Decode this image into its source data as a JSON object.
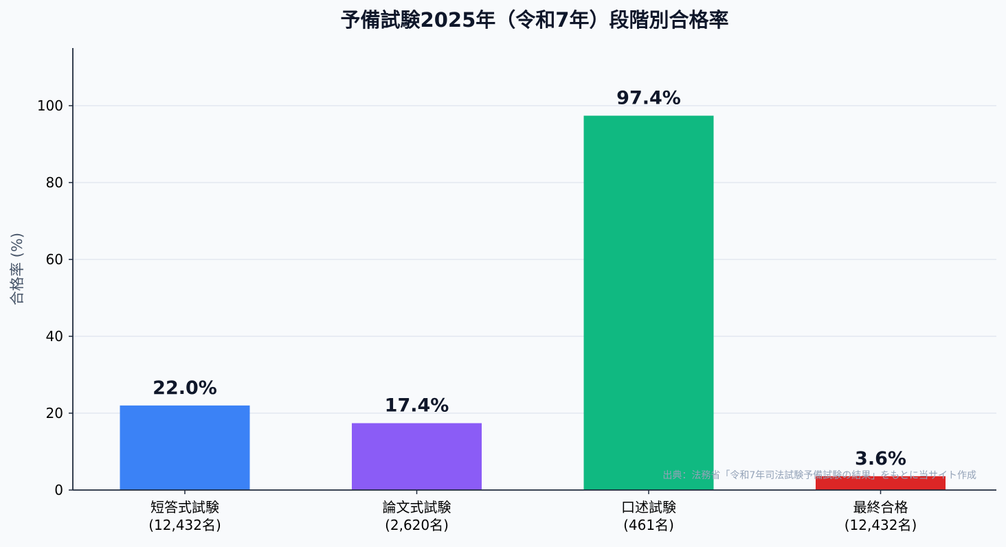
{
  "chart_data": {
    "type": "bar",
    "title": "予備試験2025年（令和7年）段階別合格率",
    "ylabel": "合格率 (%)",
    "xlabel": "",
    "ylim": [
      0,
      115
    ],
    "yticks": [
      0,
      20,
      40,
      60,
      80,
      100
    ],
    "grid": true,
    "categories": [
      {
        "name": "短答式試験",
        "count": "(12,432名)"
      },
      {
        "name": "論文式試験",
        "count": "(2,620名)"
      },
      {
        "name": "口述試験",
        "count": "(461名)"
      },
      {
        "name": "最終合格",
        "count": "(12,432名)"
      }
    ],
    "values": [
      22.0,
      17.4,
      97.4,
      3.6
    ],
    "value_labels": [
      "22.0%",
      "17.4%",
      "97.4%",
      "3.6%"
    ],
    "colors": [
      "#3b82f6",
      "#8b5cf6",
      "#10b981",
      "#dc2626"
    ],
    "source_note": "出典：法務省「令和7年司法試験予備試験の結果」をもとに当サイト作成"
  }
}
